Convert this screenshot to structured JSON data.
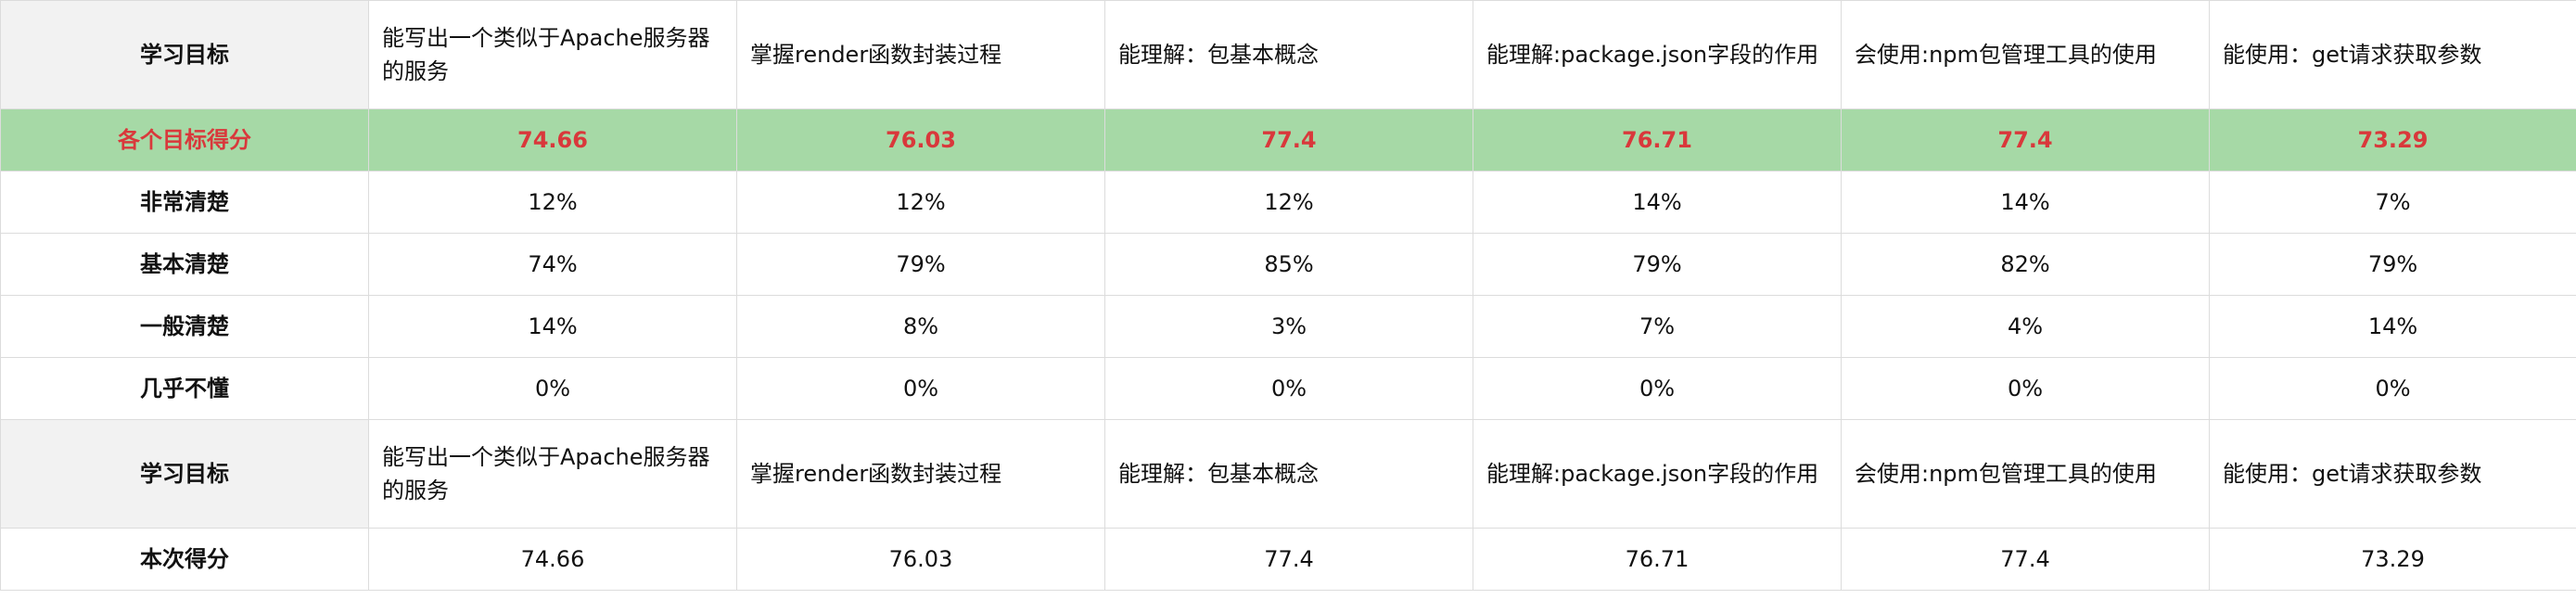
{
  "goals": [
    "能写出一个类似于Apache服务器的服务",
    "掌握render函数封装过程",
    "能理解：包基本概念",
    "能理解:package.json字段的作用",
    "会使用:npm包管理工具的使用",
    "能使用：get请求获取参数"
  ],
  "header_label": "学习目标",
  "score_row": {
    "label": "各个目标得分",
    "values": [
      "74.66",
      "76.03",
      "77.4",
      "76.71",
      "77.4",
      "73.29"
    ]
  },
  "levels": [
    {
      "label": "非常清楚",
      "values": [
        "12%",
        "12%",
        "12%",
        "14%",
        "14%",
        "7%"
      ]
    },
    {
      "label": "基本清楚",
      "values": [
        "74%",
        "79%",
        "85%",
        "79%",
        "82%",
        "79%"
      ]
    },
    {
      "label": "一般清楚",
      "values": [
        "14%",
        "8%",
        "3%",
        "7%",
        "4%",
        "14%"
      ]
    },
    {
      "label": "几乎不懂",
      "values": [
        "0%",
        "0%",
        "0%",
        "0%",
        "0%",
        "0%"
      ]
    }
  ],
  "final_row": {
    "label": "本次得分",
    "values": [
      "74.66",
      "76.03",
      "77.4",
      "76.71",
      "77.4",
      "73.29"
    ]
  },
  "colors": {
    "score_bg": "#a6d9a6",
    "score_text": "#d9383b",
    "label_bg": "#f2f2f2",
    "border": "#dcdcdc"
  }
}
